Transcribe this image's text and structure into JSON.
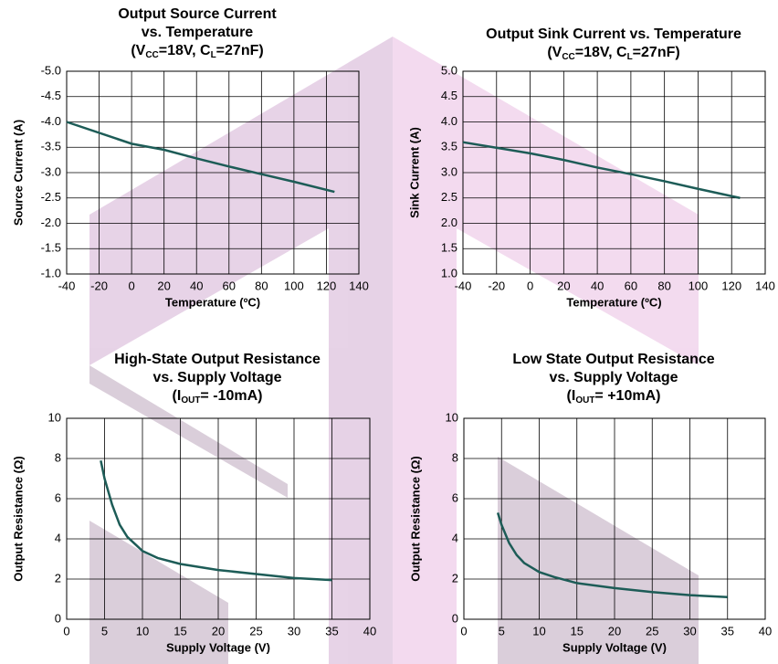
{
  "chart_data": [
    {
      "type": "line",
      "title": [
        "Output Source Current",
        "vs. Temperature",
        [
          "(V",
          "CC",
          "=18V, C",
          "L",
          "=27nF)"
        ]
      ],
      "x_label": "Temperature (ºC)",
      "y_label": "Source Current (A)",
      "xlim": [
        -40,
        140
      ],
      "xticks": [
        -40,
        -20,
        0,
        20,
        40,
        60,
        80,
        100,
        120,
        140
      ],
      "ylim": [
        -1,
        -5
      ],
      "yticks": [
        {
          "value": -1,
          "label": "-1.0"
        },
        {
          "value": -1.5,
          "label": "-1.5"
        },
        {
          "value": -2,
          "label": "-2.0"
        },
        {
          "value": -2.5,
          "label": "-2.5"
        },
        {
          "value": -3,
          "label": "-3.0"
        },
        {
          "value": -3.5,
          "label": "-3.5"
        },
        {
          "value": -4,
          "label": "-4.0"
        },
        {
          "value": -4.5,
          "label": "-4.5"
        },
        {
          "value": -5,
          "label": "-5.0"
        }
      ],
      "grid": true,
      "series": [
        {
          "color": "#1d5c57",
          "x": [
            -40,
            0,
            20,
            40,
            60,
            80,
            100,
            125
          ],
          "values": [
            -4.0,
            -3.57,
            -3.45,
            -3.28,
            -3.12,
            -2.97,
            -2.82,
            -2.62
          ]
        }
      ]
    },
    {
      "type": "line",
      "title": [
        "Output Sink Current vs. Temperature",
        [
          "(V",
          "CC",
          "=18V, C",
          "L",
          "=27nF)"
        ]
      ],
      "x_label": "Temperature (ºC)",
      "y_label": "Sink Current (A)",
      "xlim": [
        -40,
        140
      ],
      "xticks": [
        -40,
        -20,
        0,
        20,
        40,
        60,
        80,
        100,
        120,
        140
      ],
      "ylim": [
        1,
        5
      ],
      "yticks": [
        {
          "value": 1,
          "label": "1.0"
        },
        {
          "value": 1.5,
          "label": "1.5"
        },
        {
          "value": 2,
          "label": "2.0"
        },
        {
          "value": 2.5,
          "label": "2.5"
        },
        {
          "value": 3,
          "label": "3.0"
        },
        {
          "value": 3.5,
          "label": "3.5"
        },
        {
          "value": 4,
          "label": "4.0"
        },
        {
          "value": 4.5,
          "label": "4.5"
        },
        {
          "value": 5,
          "label": "5.0"
        }
      ],
      "grid": true,
      "series": [
        {
          "color": "#1d5c57",
          "x": [
            -40,
            0,
            20,
            40,
            60,
            80,
            100,
            125
          ],
          "values": [
            3.6,
            3.38,
            3.25,
            3.1,
            2.97,
            2.83,
            2.68,
            2.5
          ]
        }
      ]
    },
    {
      "type": "line",
      "title": [
        "High-State Output Resistance",
        "vs. Supply Voltage",
        [
          "(I",
          "OUT",
          "= -10mA)"
        ]
      ],
      "x_label": "Supply Voltage (V)",
      "y_label": "Output Resistance (Ω)",
      "xlim": [
        0,
        40
      ],
      "xticks": [
        0,
        5,
        10,
        15,
        20,
        25,
        30,
        35,
        40
      ],
      "ylim": [
        0,
        10
      ],
      "yticks": [
        0,
        2,
        4,
        6,
        8,
        10
      ],
      "grid": true,
      "series": [
        {
          "color": "#1d5c57",
          "x": [
            4.5,
            5,
            6,
            7,
            8,
            10,
            12,
            15,
            20,
            25,
            30,
            35
          ],
          "values": [
            7.9,
            7.0,
            5.7,
            4.7,
            4.1,
            3.4,
            3.05,
            2.75,
            2.45,
            2.25,
            2.05,
            1.95
          ]
        }
      ]
    },
    {
      "type": "line",
      "title": [
        "Low State Output Resistance",
        "vs. Supply Voltage",
        [
          "(I",
          "OUT",
          "= +10mA)"
        ]
      ],
      "x_label": "Supply Voltage (V)",
      "y_label": "Output Resistance (Ω)",
      "xlim": [
        0,
        40
      ],
      "xticks": [
        0,
        5,
        10,
        15,
        20,
        25,
        30,
        35,
        40
      ],
      "ylim": [
        0,
        10
      ],
      "yticks": [
        0,
        2,
        4,
        6,
        8,
        10
      ],
      "grid": true,
      "series": [
        {
          "color": "#1d5c57",
          "x": [
            4.5,
            5,
            6,
            7,
            8,
            10,
            12,
            15,
            20,
            25,
            30,
            35
          ],
          "values": [
            5.3,
            4.7,
            3.8,
            3.2,
            2.8,
            2.35,
            2.1,
            1.8,
            1.55,
            1.35,
            1.2,
            1.1
          ]
        }
      ]
    }
  ]
}
